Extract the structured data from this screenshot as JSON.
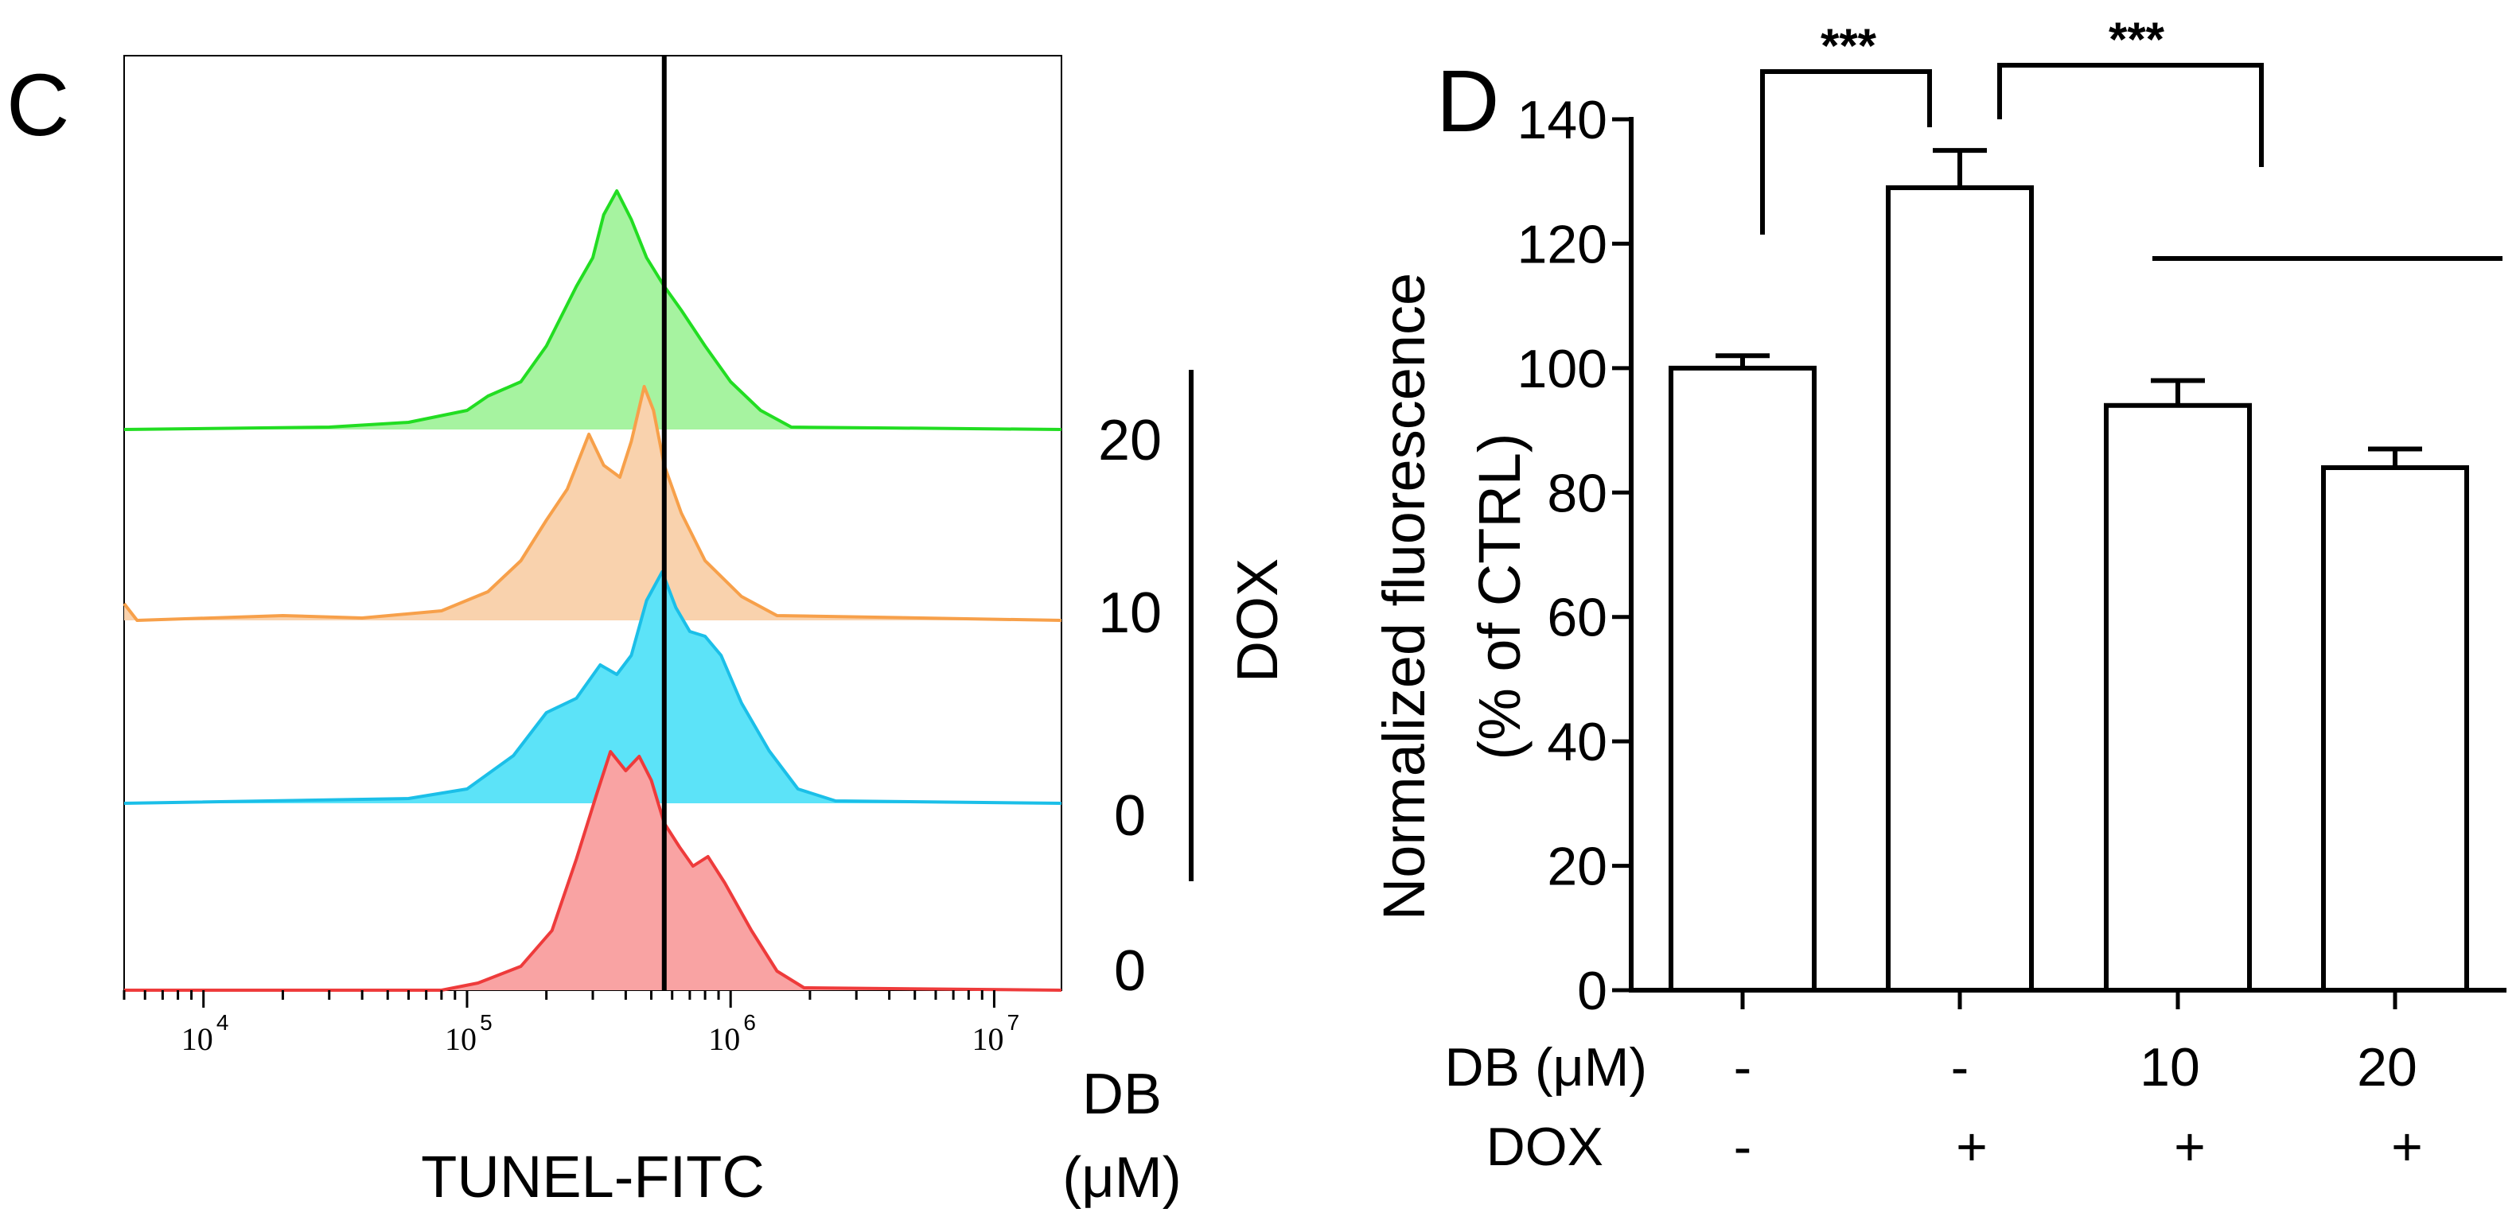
{
  "panel_c": {
    "letter": "C",
    "xlabel": "TUNEL-FITC",
    "dox_label": "DOX",
    "db_label_line1": "DB",
    "db_label_line2": "(μM)"
  },
  "panel_d": {
    "letter": "D",
    "ylabel_line1": "Normalized fluorescence",
    "ylabel_line2": "(% of CTRL)",
    "db_row_label": "DB (μM)",
    "dox_row_label": "DOX",
    "significance": [
      "***",
      "***"
    ]
  },
  "chart_data": [
    {
      "type": "area",
      "title": "",
      "xlabel": "TUNEL-FITC",
      "ylabel": "",
      "xscale": "log",
      "xlim": [
        5000,
        18000000
      ],
      "x_ticks": [
        {
          "base": "10",
          "exp": "4"
        },
        {
          "base": "10",
          "exp": "5"
        },
        {
          "base": "10",
          "exp": "6"
        },
        {
          "base": "10",
          "exp": "7"
        }
      ],
      "reference_line_x": 560000,
      "series": [
        {
          "name": "DOX + DB 20 μM",
          "stack_label": "20",
          "color": "#22dd22",
          "fill": "#a6f3a0",
          "points": [
            [
              5000,
              0.0
            ],
            [
              30000,
              0.01
            ],
            [
              60000,
              0.03
            ],
            [
              100000,
              0.08
            ],
            [
              120000,
              0.14
            ],
            [
              160000,
              0.2
            ],
            [
              200000,
              0.35
            ],
            [
              260000,
              0.6
            ],
            [
              300000,
              0.72
            ],
            [
              330000,
              0.9
            ],
            [
              370000,
              1.0
            ],
            [
              420000,
              0.88
            ],
            [
              480000,
              0.72
            ],
            [
              560000,
              0.6
            ],
            [
              650000,
              0.5
            ],
            [
              800000,
              0.35
            ],
            [
              1000000,
              0.2
            ],
            [
              1300000,
              0.08
            ],
            [
              1700000,
              0.01
            ],
            [
              18000000,
              0.0
            ]
          ]
        },
        {
          "name": "DOX + DB 10 μM",
          "stack_label": "10",
          "color": "#f7a04a",
          "fill": "#f9d2ad",
          "points": [
            [
              5000,
              0.07
            ],
            [
              5600,
              0.0
            ],
            [
              20000,
              0.02
            ],
            [
              40000,
              0.01
            ],
            [
              80000,
              0.04
            ],
            [
              120000,
              0.12
            ],
            [
              160000,
              0.25
            ],
            [
              200000,
              0.42
            ],
            [
              240000,
              0.55
            ],
            [
              290000,
              0.78
            ],
            [
              330000,
              0.65
            ],
            [
              380000,
              0.6
            ],
            [
              420000,
              0.75
            ],
            [
              470000,
              0.98
            ],
            [
              510000,
              0.88
            ],
            [
              560000,
              0.65
            ],
            [
              650000,
              0.45
            ],
            [
              800000,
              0.25
            ],
            [
              1100000,
              0.1
            ],
            [
              1500000,
              0.02
            ],
            [
              18000000,
              0.0
            ]
          ]
        },
        {
          "name": "DOX + DB 0 μM",
          "stack_label": "0",
          "color": "#1bbfe8",
          "fill": "#5ce3f8",
          "points": [
            [
              5000,
              0.0
            ],
            [
              60000,
              0.02
            ],
            [
              100000,
              0.06
            ],
            [
              150000,
              0.2
            ],
            [
              200000,
              0.38
            ],
            [
              260000,
              0.44
            ],
            [
              320000,
              0.58
            ],
            [
              370000,
              0.54
            ],
            [
              420000,
              0.62
            ],
            [
              480000,
              0.85
            ],
            [
              550000,
              0.97
            ],
            [
              620000,
              0.82
            ],
            [
              700000,
              0.72
            ],
            [
              800000,
              0.7
            ],
            [
              920000,
              0.62
            ],
            [
              1100000,
              0.42
            ],
            [
              1400000,
              0.22
            ],
            [
              1800000,
              0.06
            ],
            [
              2500000,
              0.01
            ],
            [
              18000000,
              0.0
            ]
          ]
        },
        {
          "name": "Control (no DOX, DB 0 μM)",
          "stack_label": "0",
          "color": "#ee3b3b",
          "fill": "#f9a3a3",
          "points": [
            [
              5000,
              0.0
            ],
            [
              80000,
              0.0
            ],
            [
              110000,
              0.03
            ],
            [
              160000,
              0.1
            ],
            [
              210000,
              0.25
            ],
            [
              260000,
              0.55
            ],
            [
              310000,
              0.82
            ],
            [
              350000,
              1.0
            ],
            [
              400000,
              0.92
            ],
            [
              450000,
              0.98
            ],
            [
              500000,
              0.88
            ],
            [
              560000,
              0.7
            ],
            [
              640000,
              0.6
            ],
            [
              720000,
              0.52
            ],
            [
              820000,
              0.56
            ],
            [
              950000,
              0.45
            ],
            [
              1200000,
              0.25
            ],
            [
              1500000,
              0.08
            ],
            [
              1900000,
              0.01
            ],
            [
              18000000,
              0.0
            ]
          ]
        }
      ]
    },
    {
      "type": "bar",
      "title": "",
      "xlabel": "",
      "ylabel": "Normalized fluorescence (% of CTRL)",
      "ylim": [
        0,
        140
      ],
      "yticks": [
        0,
        20,
        40,
        60,
        80,
        100,
        120,
        140
      ],
      "categories": [
        {
          "db": "-",
          "dox": "-"
        },
        {
          "db": "-",
          "dox": "+"
        },
        {
          "db": "10",
          "dox": "+"
        },
        {
          "db": "20",
          "dox": "+"
        }
      ],
      "values": [
        100,
        129,
        94,
        84
      ],
      "errors": [
        2,
        6,
        4,
        3
      ],
      "significance": [
        {
          "from": 0,
          "to": 1,
          "label": "***"
        },
        {
          "from": 1,
          "to": 2,
          "label": "***"
        }
      ]
    }
  ]
}
